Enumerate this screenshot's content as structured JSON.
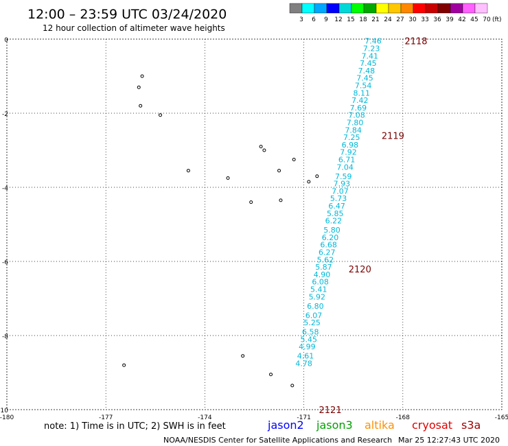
{
  "header": {
    "title": "12:00 – 23:59 UTC 03/24/2020",
    "subtitle": "12 hour collection of altimeter wave heights"
  },
  "legend": {
    "colors": [
      "#808080",
      "#00ffff",
      "#00a8ff",
      "#0000ff",
      "#00d8d8",
      "#00ff00",
      "#00a800",
      "#ffff00",
      "#ffc800",
      "#ff8800",
      "#ff0000",
      "#c80000",
      "#800000",
      "#a000a0",
      "#ff60ff",
      "#ffc0ff"
    ],
    "labels": [
      "3",
      "6",
      "9",
      "12",
      "15",
      "18",
      "21",
      "24",
      "27",
      "30",
      "33",
      "36",
      "39",
      "42",
      "45",
      "70"
    ],
    "unit": "(ft)"
  },
  "axes": {
    "x_ticks": [
      "-180",
      "-177",
      "-174",
      "-171",
      "-168",
      "-165"
    ],
    "y_ticks": [
      "0",
      "-2",
      "-4",
      "-6",
      "-8",
      "-10"
    ]
  },
  "track": {
    "color": "#00b8d8",
    "points": [
      {
        "lon": -168.9,
        "lat": -0.05,
        "value": "7.46"
      },
      {
        "lon": -168.95,
        "lat": -0.25,
        "value": "7.23"
      },
      {
        "lon": -169.0,
        "lat": -0.45,
        "value": "7.41"
      },
      {
        "lon": -169.05,
        "lat": -0.65,
        "value": "7.45"
      },
      {
        "lon": -169.1,
        "lat": -0.85,
        "value": "7.48"
      },
      {
        "lon": -169.15,
        "lat": -1.05,
        "value": "7.45"
      },
      {
        "lon": -169.2,
        "lat": -1.25,
        "value": "7.54"
      },
      {
        "lon": -169.25,
        "lat": -1.45,
        "value": "8.11"
      },
      {
        "lon": -169.3,
        "lat": -1.65,
        "value": "7.42"
      },
      {
        "lon": -169.35,
        "lat": -1.85,
        "value": "7.69"
      },
      {
        "lon": -169.4,
        "lat": -2.05,
        "value": "7.08"
      },
      {
        "lon": -169.45,
        "lat": -2.25,
        "value": "7.80"
      },
      {
        "lon": -169.5,
        "lat": -2.45,
        "value": "7.84"
      },
      {
        "lon": -169.55,
        "lat": -2.65,
        "value": "7.25"
      },
      {
        "lon": -169.6,
        "lat": -2.85,
        "value": "6.98"
      },
      {
        "lon": -169.65,
        "lat": -3.05,
        "value": "7.92"
      },
      {
        "lon": -169.7,
        "lat": -3.25,
        "value": "6.71"
      },
      {
        "lon": -169.75,
        "lat": -3.45,
        "value": "7.04"
      },
      {
        "lon": -169.8,
        "lat": -3.7,
        "value": "7.59"
      },
      {
        "lon": -169.85,
        "lat": -3.9,
        "value": "7.93"
      },
      {
        "lon": -169.9,
        "lat": -4.1,
        "value": "7.07"
      },
      {
        "lon": -169.95,
        "lat": -4.3,
        "value": "5.73"
      },
      {
        "lon": -170.0,
        "lat": -4.5,
        "value": "6.47"
      },
      {
        "lon": -170.05,
        "lat": -4.7,
        "value": "5.85"
      },
      {
        "lon": -170.1,
        "lat": -4.9,
        "value": "6.22"
      },
      {
        "lon": -170.15,
        "lat": -5.15,
        "value": "5.80"
      },
      {
        "lon": -170.2,
        "lat": -5.35,
        "value": "6.20"
      },
      {
        "lon": -170.25,
        "lat": -5.55,
        "value": "6.68"
      },
      {
        "lon": -170.3,
        "lat": -5.75,
        "value": "6.27"
      },
      {
        "lon": -170.35,
        "lat": -5.95,
        "value": "5.62"
      },
      {
        "lon": -170.4,
        "lat": -6.15,
        "value": "5.87"
      },
      {
        "lon": -170.45,
        "lat": -6.35,
        "value": "4.90"
      },
      {
        "lon": -170.5,
        "lat": -6.55,
        "value": "6.08"
      },
      {
        "lon": -170.55,
        "lat": -6.75,
        "value": "5.41"
      },
      {
        "lon": -170.6,
        "lat": -6.95,
        "value": "5.92"
      },
      {
        "lon": -170.65,
        "lat": -7.2,
        "value": "6.80"
      },
      {
        "lon": -170.7,
        "lat": -7.45,
        "value": "6.07"
      },
      {
        "lon": -170.75,
        "lat": -7.65,
        "value": "5.25"
      },
      {
        "lon": -170.8,
        "lat": -7.9,
        "value": "6.58"
      },
      {
        "lon": -170.85,
        "lat": -8.1,
        "value": "5.45"
      },
      {
        "lon": -170.9,
        "lat": -8.3,
        "value": "4.99"
      },
      {
        "lon": -170.95,
        "lat": -8.55,
        "value": "4.61"
      },
      {
        "lon": -171.0,
        "lat": -8.75,
        "value": "4.78"
      }
    ]
  },
  "pass_labels": [
    {
      "lon": -167.6,
      "lat": -0.05,
      "text": "2118"
    },
    {
      "lon": -168.3,
      "lat": -2.6,
      "text": "2119"
    },
    {
      "lon": -169.3,
      "lat": -6.2,
      "text": "2120"
    },
    {
      "lon": -170.2,
      "lat": -10.0,
      "text": "2121"
    }
  ],
  "islands": [
    {
      "lon": -175.9,
      "lat": -1.0
    },
    {
      "lon": -176.0,
      "lat": -1.3
    },
    {
      "lon": -175.95,
      "lat": -1.8
    },
    {
      "lon": -175.35,
      "lat": -2.05
    },
    {
      "lon": -172.3,
      "lat": -2.9
    },
    {
      "lon": -172.2,
      "lat": -3.0
    },
    {
      "lon": -171.3,
      "lat": -3.25
    },
    {
      "lon": -171.75,
      "lat": -3.55
    },
    {
      "lon": -170.6,
      "lat": -3.7
    },
    {
      "lon": -170.85,
      "lat": -3.85
    },
    {
      "lon": -174.5,
      "lat": -3.55
    },
    {
      "lon": -173.3,
      "lat": -3.75
    },
    {
      "lon": -172.6,
      "lat": -4.4
    },
    {
      "lon": -171.7,
      "lat": -4.35
    },
    {
      "lon": -172.85,
      "lat": -8.55
    },
    {
      "lon": -172.0,
      "lat": -9.05
    },
    {
      "lon": -171.35,
      "lat": -9.35
    },
    {
      "lon": -176.45,
      "lat": -8.8
    }
  ],
  "footer": {
    "note": "note: 1) Time is in UTC; 2) SWH is in feet",
    "satellites": [
      {
        "name": "jason2",
        "color": "#0000ff"
      },
      {
        "name": "jason3",
        "color": "#00a000"
      },
      {
        "name": "altika",
        "color": "#ff9000"
      },
      {
        "name": "cryosat",
        "color": "#e00000"
      },
      {
        "name": "s3a",
        "color": "#a00000"
      }
    ],
    "credit": "NOAA/NESDIS Center for Satellite Applications and Research",
    "timestamp": "Mar 25 12:27:43 UTC 2020"
  }
}
